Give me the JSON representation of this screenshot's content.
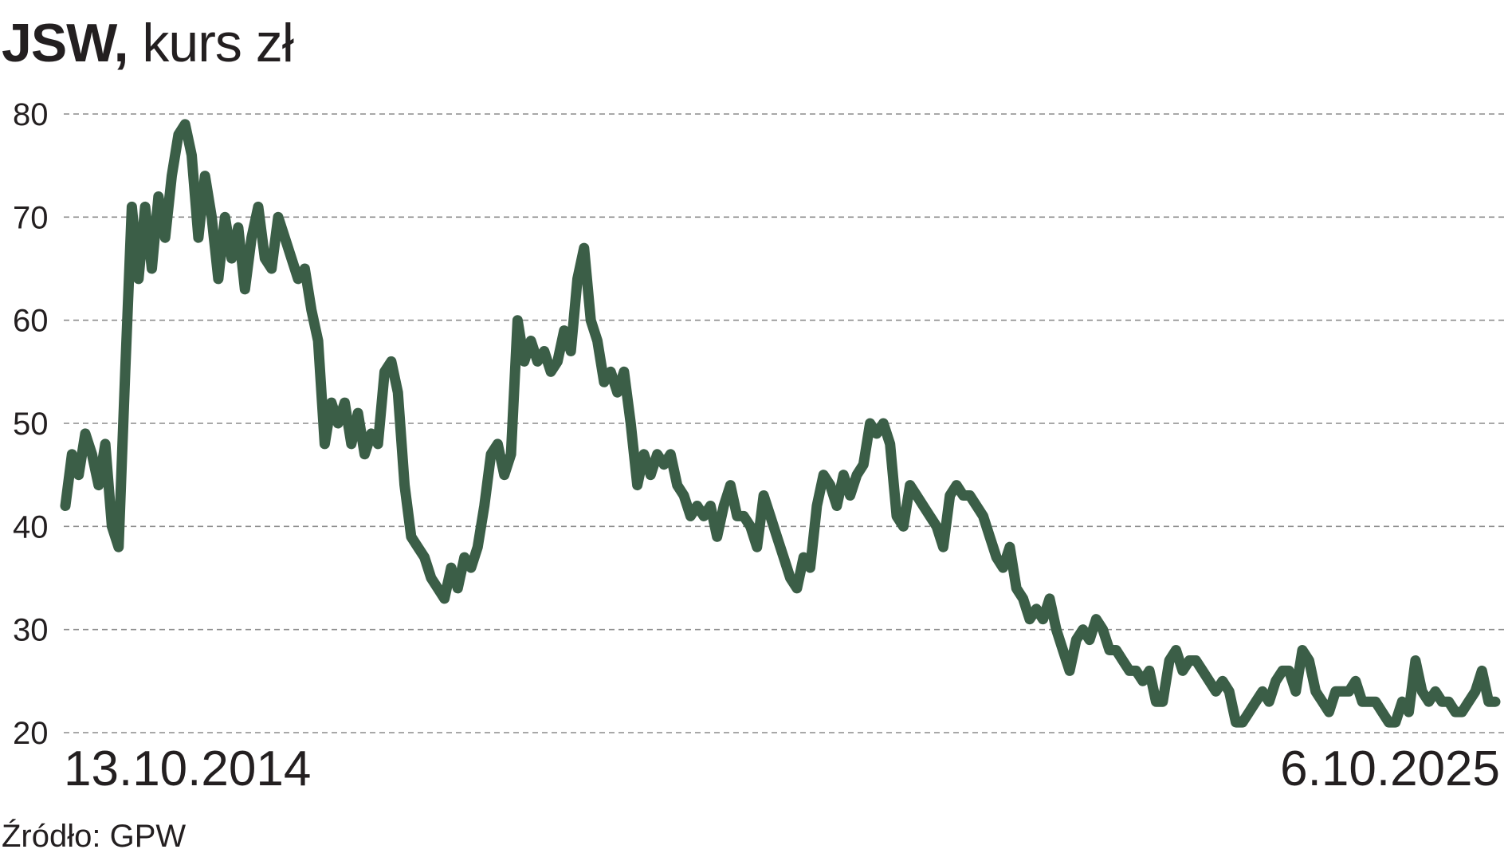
{
  "title": {
    "bold": "JSW,",
    "rest": " kurs zł"
  },
  "source": "Źródło: GPW",
  "colors": {
    "line": "#3b5e47",
    "grid": "#8c8c8c",
    "text": "#231f20"
  },
  "chart_data": {
    "type": "line",
    "title": "JSW, kurs zł",
    "xlabel": "",
    "ylabel": "",
    "ylim": [
      20,
      80
    ],
    "yticks": [
      "80",
      "70",
      "60",
      "50",
      "40",
      "30",
      "20"
    ],
    "grid": true,
    "x_start_label": "13.10.2014",
    "x_end_label": "6.10.2025",
    "series": [
      {
        "values": [
          42,
          47,
          45,
          49,
          47,
          44,
          48,
          40,
          38,
          55,
          71,
          64,
          71,
          65,
          72,
          68,
          74,
          78,
          79,
          76,
          68,
          74,
          70,
          64,
          70,
          66,
          69,
          63,
          68,
          71,
          66,
          65,
          70,
          68,
          66,
          64,
          65,
          61,
          58,
          48,
          52,
          50,
          52,
          48,
          51,
          47,
          49,
          48,
          55,
          56,
          53,
          44,
          39,
          38,
          37,
          35,
          34,
          33,
          36,
          34,
          37,
          36,
          38,
          42,
          47,
          48,
          45,
          47,
          60,
          56,
          58,
          56,
          57,
          55,
          56,
          59,
          57,
          64,
          67,
          60,
          58,
          54,
          55,
          53,
          55,
          50,
          44,
          47,
          45,
          47,
          46,
          47,
          44,
          43,
          41,
          42,
          41,
          42,
          39,
          42,
          44,
          41,
          41,
          40,
          38,
          43,
          41,
          39,
          37,
          35,
          34,
          37,
          36,
          42,
          45,
          44,
          42,
          45,
          43,
          45,
          46,
          50,
          49,
          50,
          48,
          41,
          40,
          44,
          43,
          42,
          41,
          40,
          38,
          43,
          44,
          43,
          43,
          42,
          41,
          39,
          37,
          36,
          38,
          34,
          33,
          31,
          32,
          31,
          33,
          30,
          28,
          26,
          29,
          30,
          29,
          31,
          30,
          28,
          28,
          27,
          26,
          26,
          25,
          26,
          23,
          23,
          27,
          28,
          26,
          27,
          27,
          26,
          25,
          24,
          25,
          24,
          21,
          21,
          22,
          23,
          24,
          23,
          25,
          26,
          26,
          24,
          28,
          27,
          24,
          23,
          22,
          24,
          24,
          24,
          25,
          23,
          23,
          23,
          22,
          21,
          21,
          23,
          22,
          27,
          24,
          23,
          24,
          23,
          23,
          22,
          22,
          23,
          24,
          26,
          23,
          23
        ]
      }
    ]
  }
}
